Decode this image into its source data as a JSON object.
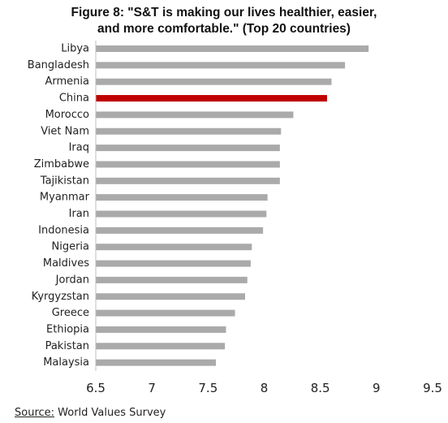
{
  "figure": {
    "title_line1": "Figure 8: \"S&T is making our lives healthier, easier,",
    "title_line2": "and more comfortable.\" (Top 20 countries)"
  },
  "source": {
    "label": "Source:",
    "text": " World Values Survey"
  },
  "chart_data": {
    "type": "bar",
    "orientation": "horizontal",
    "title": "Figure 8: \"S&T is making our lives healthier, easier, and more comfortable.\" (Top 20 countries)",
    "xlabel": "",
    "ylabel": "",
    "xlim": [
      6.5,
      9.5
    ],
    "xticks": [
      6.5,
      7,
      7.5,
      8,
      8.5,
      9,
      9.5
    ],
    "xtick_labels": [
      "6.5",
      "7",
      "7.5",
      "8",
      "8.5",
      "9",
      "9.5"
    ],
    "grid": false,
    "legend": false,
    "categories": [
      "Libya",
      "Bangladesh",
      "Armenia",
      "China",
      "Morocco",
      "Viet Nam",
      "Iraq",
      "Zimbabwe",
      "Tajikistan",
      "Myanmar",
      "Iran",
      "Indonesia",
      "Nigeria",
      "Maldives",
      "Jordan",
      "Kyrgyzstan",
      "Greece",
      "Ethiopia",
      "Pakistan",
      "Malaysia"
    ],
    "values": [
      8.93,
      8.72,
      8.6,
      8.56,
      8.26,
      8.15,
      8.14,
      8.14,
      8.14,
      8.03,
      8.02,
      7.99,
      7.89,
      7.88,
      7.85,
      7.83,
      7.74,
      7.66,
      7.65,
      7.57
    ],
    "bar_color": "#aaaaaa",
    "highlight": {
      "category": "China",
      "color": "#c00000"
    }
  }
}
